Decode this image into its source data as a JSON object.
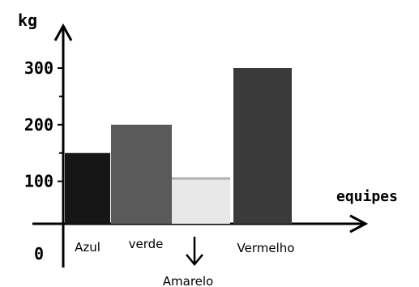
{
  "chart_data": {
    "type": "bar",
    "title": "",
    "ylabel": "kg",
    "xlabel": "equipes",
    "origin_label": "0",
    "categories": [
      "Azul",
      "verde",
      "Amarelo",
      "Vermelho"
    ],
    "values": [
      150,
      200,
      105,
      300
    ],
    "colors": [
      "#161616",
      "#5a5a5a",
      "#e8e8e8",
      "#3a3a3a"
    ],
    "y_ticks": [
      100,
      200,
      300
    ],
    "y_tick_labels": [
      "100",
      "200",
      "300"
    ],
    "ylim": [
      0,
      300
    ],
    "grid": false,
    "legend": "none"
  }
}
